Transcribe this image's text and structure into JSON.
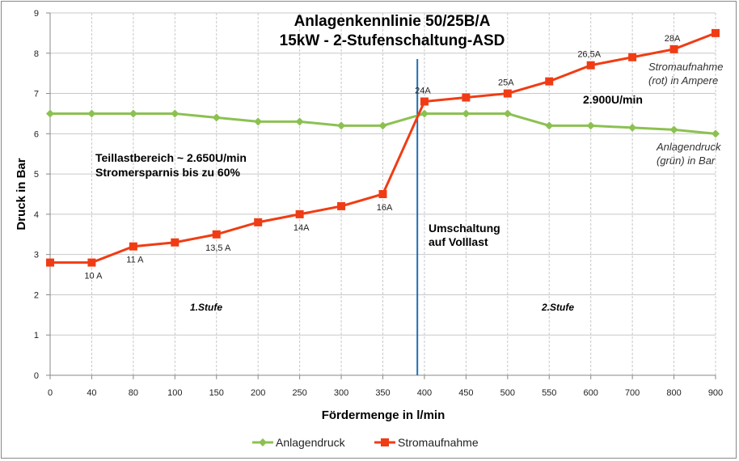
{
  "chart_data": {
    "type": "line",
    "title": "Anlagenkennlinie 50/25B/A",
    "subtitle": "15kW - 2-Stufenschaltung-ASD",
    "xlabel": "Fördermenge in l/min",
    "ylabel": "Druck in Bar",
    "categories": [
      "0",
      "40",
      "80",
      "100",
      "150",
      "200",
      "250",
      "300",
      "350",
      "400",
      "450",
      "500",
      "550",
      "600",
      "700",
      "800",
      "900"
    ],
    "ylim": [
      0,
      9
    ],
    "yticks": [
      "0",
      "1",
      "2",
      "3",
      "4",
      "5",
      "6",
      "7",
      "8",
      "9"
    ],
    "grid": {
      "horizontal": true,
      "vertical_dashed": true
    },
    "legend_position": "bottom",
    "series": [
      {
        "name": "Anlagendruck",
        "color": "#8cc152",
        "marker": "diamond",
        "values": [
          6.5,
          6.5,
          6.5,
          6.5,
          6.4,
          6.3,
          6.3,
          6.2,
          6.2,
          6.5,
          6.5,
          6.5,
          6.2,
          6.2,
          6.15,
          6.1,
          6.0
        ]
      },
      {
        "name": "Stromaufnahme",
        "color": "#f03c14",
        "marker": "square",
        "values": [
          2.8,
          2.8,
          3.2,
          3.3,
          3.5,
          3.8,
          4.0,
          4.2,
          4.5,
          6.8,
          6.9,
          7.0,
          7.3,
          7.7,
          7.9,
          8.1,
          8.5
        ]
      }
    ],
    "data_labels": [
      {
        "index": 1,
        "text": "10 A",
        "place": "below"
      },
      {
        "index": 2,
        "text": "11 A",
        "place": "below"
      },
      {
        "index": 4,
        "text": "13,5 A",
        "place": "below"
      },
      {
        "index": 6,
        "text": "14A",
        "place": "below"
      },
      {
        "index": 8,
        "text": "16A",
        "place": "below"
      },
      {
        "index": 9,
        "text": "24A",
        "place": "above"
      },
      {
        "index": 11,
        "text": "25A",
        "place": "above"
      },
      {
        "index": 13,
        "text": "26,5A",
        "place": "above"
      },
      {
        "index": 15,
        "text": "28A",
        "place": "above"
      }
    ],
    "switchover_line": {
      "color": "#1f6fb0",
      "category_index": 8.83
    },
    "annotations": {
      "teillast_1": "Teillastbereich ~ 2.650U/min",
      "teillast_2": "Stromersparnis bis zu 60%",
      "vollast_rpm": "2.900U/min",
      "umschaltung_1": "Umschaltung",
      "umschaltung_2": "auf Volllast",
      "stufe1": "1.Stufe",
      "stufe2": "2.Stufe",
      "strom_note_1": "Stromaufnahme",
      "strom_note_2": "(rot) in Ampere",
      "druck_note_1": "Anlagendruck",
      "druck_note_2": "(grün) in Bar"
    }
  }
}
